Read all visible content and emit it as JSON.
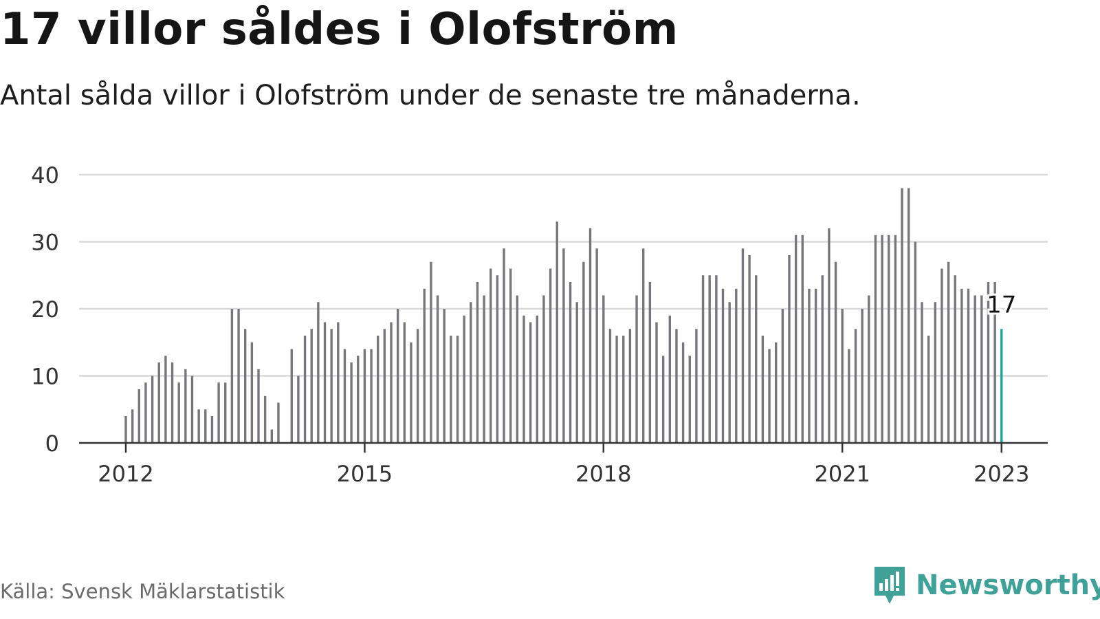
{
  "title": "17 villor såldes i Olofström",
  "subtitle": "Antal sålda villor i Olofström under de senaste tre månaderna.",
  "source": "Källa: Svensk Mäklarstatistik",
  "brand": {
    "name": "Newsworthy",
    "icon": "newsworthy-logo-icon"
  },
  "colors": {
    "bar": "#77777b",
    "highlight": "#18a69a",
    "grid": "#d9d9d9",
    "axis": "#333333",
    "brand": "#3fa197"
  },
  "chart_data": {
    "type": "bar",
    "title": "17 villor såldes i Olofström",
    "subtitle": "Antal sålda villor i Olofström under de senaste tre månaderna.",
    "xlabel": "",
    "ylabel": "",
    "ylim": [
      0,
      40
    ],
    "yticks": [
      0,
      10,
      20,
      30,
      40
    ],
    "xticks": [
      {
        "label": "2012",
        "index": 0
      },
      {
        "label": "2015",
        "index": 36
      },
      {
        "label": "2018",
        "index": 72
      },
      {
        "label": "2021",
        "index": 108
      },
      {
        "label": "2023",
        "index": 132
      }
    ],
    "grid": true,
    "legend": "none",
    "highlight": {
      "index": 132,
      "label": "17"
    },
    "series": [
      {
        "values": [
          4,
          5,
          8,
          9,
          10,
          12,
          13,
          12,
          9,
          11,
          10,
          5,
          5,
          4,
          9,
          9,
          20,
          20,
          17,
          15,
          11,
          7,
          2,
          6,
          null,
          14,
          10,
          16,
          17,
          21,
          18,
          17,
          18,
          14,
          12,
          13,
          14,
          14,
          16,
          17,
          18,
          20,
          18,
          15,
          17,
          23,
          27,
          22,
          20,
          16,
          16,
          19,
          21,
          24,
          22,
          26,
          25,
          29,
          26,
          22,
          19,
          18,
          19,
          22,
          26,
          33,
          29,
          24,
          21,
          27,
          32,
          29,
          22,
          17,
          16,
          16,
          17,
          22,
          29,
          24,
          18,
          13,
          19,
          17,
          15,
          13,
          17,
          25,
          25,
          25,
          23,
          21,
          23,
          29,
          28,
          25,
          16,
          14,
          15,
          20,
          28,
          31,
          31,
          23,
          23,
          25,
          32,
          27,
          20,
          14,
          17,
          20,
          22,
          31,
          31,
          31,
          31,
          38,
          38,
          30,
          21,
          16,
          21,
          26,
          27,
          25,
          23,
          23,
          22,
          22,
          24,
          24,
          17
        ]
      }
    ]
  }
}
